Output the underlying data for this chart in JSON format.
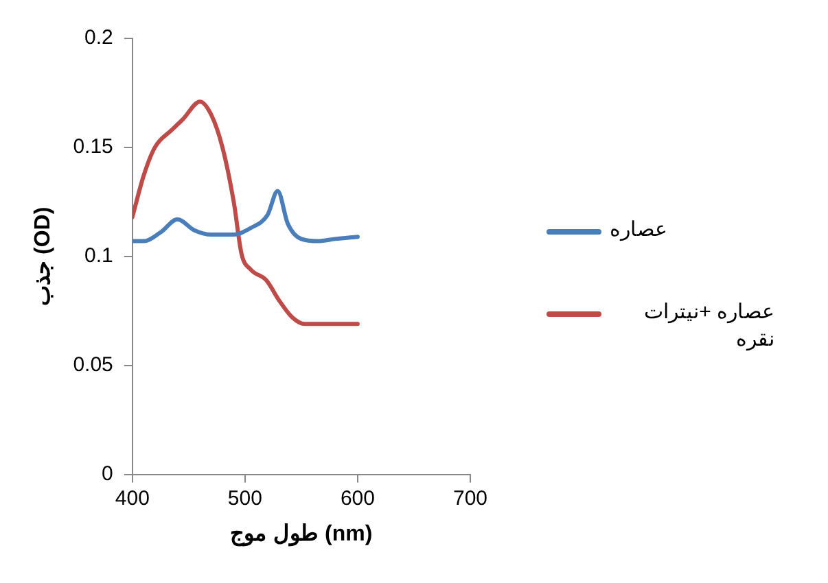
{
  "chart_data": {
    "type": "line",
    "xlabel": "طول موج (nm)",
    "ylabel": "جذب (OD)",
    "series": [
      {
        "name": "عصاره",
        "color": "#4a7ebb",
        "x": [
          400,
          410,
          425,
          440,
          455,
          470,
          490,
          505,
          520,
          529,
          538,
          550,
          565,
          580,
          600
        ],
        "values": [
          0.107,
          0.107,
          0.111,
          0.117,
          0.112,
          0.11,
          0.11,
          0.113,
          0.119,
          0.13,
          0.115,
          0.108,
          0.107,
          0.108,
          0.109
        ]
      },
      {
        "name": "عصاره +نیترات نقره",
        "color": "#be4b48",
        "x": [
          400,
          410,
          420,
          435,
          445,
          460,
          470,
          480,
          490,
          497,
          505,
          519,
          530,
          542,
          553,
          570,
          600
        ],
        "values": [
          0.118,
          0.137,
          0.15,
          0.158,
          0.163,
          0.171,
          0.165,
          0.15,
          0.125,
          0.101,
          0.094,
          0.089,
          0.08,
          0.072,
          0.069,
          0.069,
          0.069
        ]
      }
    ],
    "xlim": [
      400,
      700
    ],
    "xticks": [
      400,
      500,
      600,
      700
    ],
    "ylim": [
      0,
      0.2
    ],
    "yticks": [
      0,
      0.05,
      0.1,
      0.15,
      0.2
    ],
    "grid": false,
    "legend": "right",
    "marker": "none",
    "line_style": "solid"
  }
}
